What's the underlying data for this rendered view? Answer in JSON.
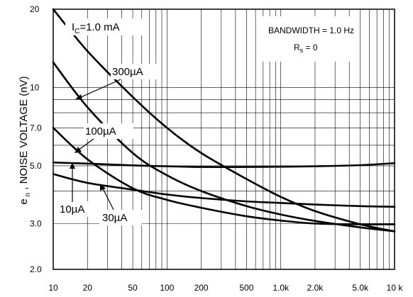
{
  "chart_data": {
    "type": "line",
    "ylabel": "e n , NOISE VOLTAGE (nV)",
    "xlim": [
      10,
      10000
    ],
    "ylim": [
      2.0,
      20
    ],
    "x_scale": "log",
    "y_scale": "log",
    "grid": true,
    "x_ticks": [
      {
        "v": 10,
        "label": "10"
      },
      {
        "v": 20,
        "label": "20"
      },
      {
        "v": 50,
        "label": "50"
      },
      {
        "v": 100,
        "label": "100"
      },
      {
        "v": 200,
        "label": "200"
      },
      {
        "v": 500,
        "label": "500"
      },
      {
        "v": 1000,
        "label": "1.0k"
      },
      {
        "v": 2000,
        "label": "2.0k"
      },
      {
        "v": 5000,
        "label": "5.0k"
      },
      {
        "v": 10000,
        "label": "10 k"
      }
    ],
    "y_ticks": [
      {
        "v": 2.0,
        "label": "2.0"
      },
      {
        "v": 3.0,
        "label": "3.0"
      },
      {
        "v": 5.0,
        "label": "5.0"
      },
      {
        "v": 7.0,
        "label": "7.0"
      },
      {
        "v": 10,
        "label": "10"
      },
      {
        "v": 20,
        "label": "20"
      }
    ],
    "minor_y": [
      4,
      6,
      8,
      9
    ],
    "series": [
      {
        "name": "IC=1.0 mA",
        "x": [
          10,
          20,
          50,
          100,
          200,
          500,
          1000,
          2000,
          5000,
          10000
        ],
        "y": [
          20,
          13.8,
          9.2,
          7.0,
          5.6,
          4.45,
          3.8,
          3.35,
          2.98,
          2.8
        ]
      },
      {
        "name": "300µA",
        "x": [
          10,
          20,
          50,
          100,
          200,
          500,
          1000,
          2000,
          5000,
          10000
        ],
        "y": [
          12.5,
          8.4,
          5.6,
          4.6,
          4.0,
          3.5,
          3.25,
          3.07,
          2.9,
          2.8
        ]
      },
      {
        "name": "100µA",
        "x": [
          10,
          20,
          50,
          100,
          200,
          500,
          1000,
          2000,
          5000,
          10000
        ],
        "y": [
          7.0,
          5.3,
          4.1,
          3.7,
          3.45,
          3.2,
          3.08,
          3.0,
          2.98,
          2.98
        ]
      },
      {
        "name": "30µA",
        "x": [
          10,
          20,
          50,
          100,
          200,
          500,
          1000,
          2000,
          5000,
          10000
        ],
        "y": [
          4.65,
          4.3,
          4.05,
          3.88,
          3.76,
          3.65,
          3.6,
          3.55,
          3.5,
          3.48
        ]
      },
      {
        "name": "10µA",
        "x": [
          10,
          20,
          50,
          100,
          200,
          500,
          1000,
          2000,
          5000,
          10000
        ],
        "y": [
          5.15,
          5.1,
          5.02,
          4.98,
          4.95,
          4.95,
          4.96,
          4.98,
          5.03,
          5.12
        ]
      }
    ],
    "annotations": {
      "ic_label": "I C=1.0 mA",
      "a300": "300µA",
      "a100": "100µA",
      "a10": "10µA",
      "a30": "30µA",
      "bandwidth": "BANDWIDTH = 1.0 Hz",
      "rs": "R s = 0"
    }
  }
}
